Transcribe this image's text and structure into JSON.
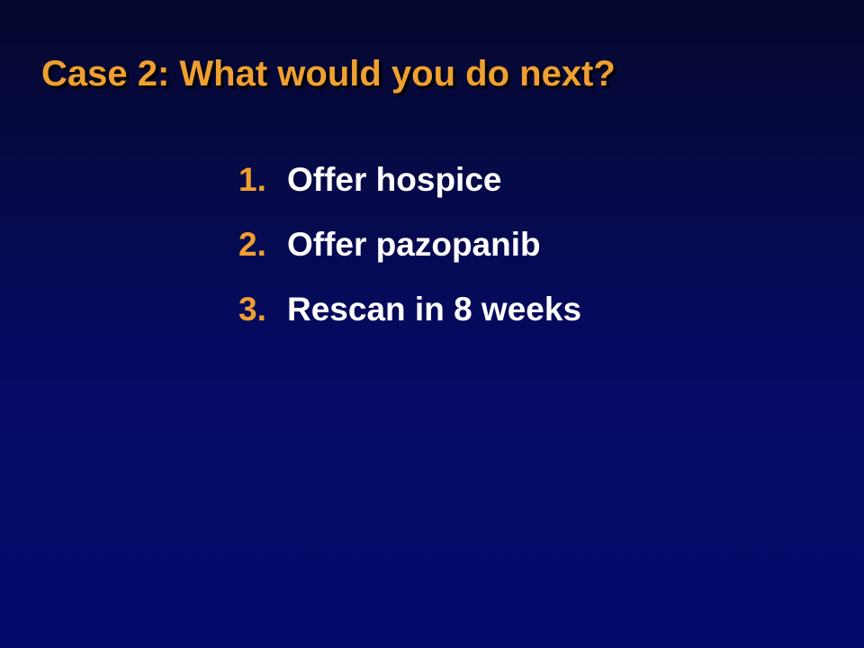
{
  "slide": {
    "title": "Case 2: What would you do next?",
    "options": [
      {
        "number": "1.",
        "text": "Offer hospice"
      },
      {
        "number": "2.",
        "text": "Offer pazopanib"
      },
      {
        "number": "3.",
        "text": "Rescan in 8 weeks"
      }
    ]
  },
  "colors": {
    "title": "#f0a030",
    "number": "#f0a030",
    "text": "#ffffff",
    "background_top": "#06072e",
    "background_bottom": "#02096a"
  }
}
